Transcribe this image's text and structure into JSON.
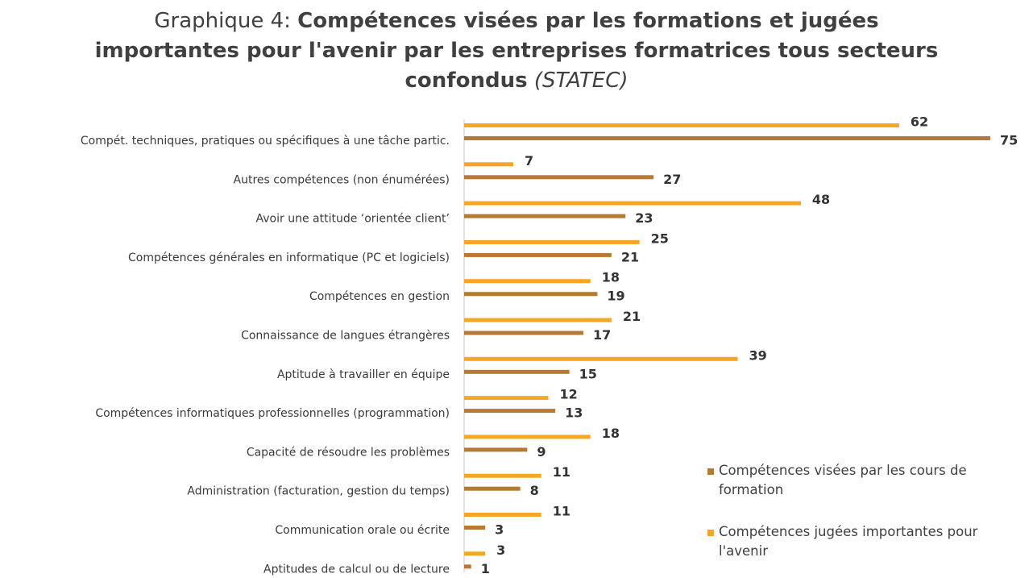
{
  "title": {
    "lead": "Graphique 4:",
    "main": "Compétences visées par les formations et jugées importantes pour l'avenir par les entreprises formatrices tous secteurs confondus",
    "source": "(STATEC)"
  },
  "chart_data": {
    "type": "bar",
    "orientation": "horizontal",
    "categories": [
      "Compét. techniques, pratiques ou spécifiques à une tâche partic.",
      "Autres compétences (non énumérées)",
      "Avoir une attitude ‘orientée client’",
      "Compétences générales en informatique (PC et logiciels)",
      "Compétences en gestion",
      "Connaissance de langues étrangères",
      "Aptitude à travailler en équipe",
      "Compétences informatiques professionnelles (programmation)",
      "Capacité de résoudre les problèmes",
      "Administration (facturation, gestion du temps)",
      "Communication orale ou écrite",
      "Aptitudes de calcul ou de lecture"
    ],
    "series": [
      {
        "name": "Compétences jugées importantes pour l'avenir",
        "color": "#F5A623",
        "values": [
          62,
          7,
          48,
          25,
          18,
          21,
          39,
          12,
          18,
          11,
          11,
          3
        ]
      },
      {
        "name": "Compétences visées par les cours de formation",
        "color": "#B77A34",
        "values": [
          75,
          27,
          23,
          21,
          19,
          17,
          15,
          13,
          9,
          8,
          3,
          1
        ]
      }
    ],
    "xlim": [
      0,
      75
    ],
    "grid": false,
    "legend_position": "bottom-right"
  },
  "legend": [
    {
      "label": "Compétences visées par les cours de formation",
      "color": "#B77A34"
    },
    {
      "label": "Compétences jugées importantes pour l'avenir",
      "color": "#F5A623"
    }
  ]
}
